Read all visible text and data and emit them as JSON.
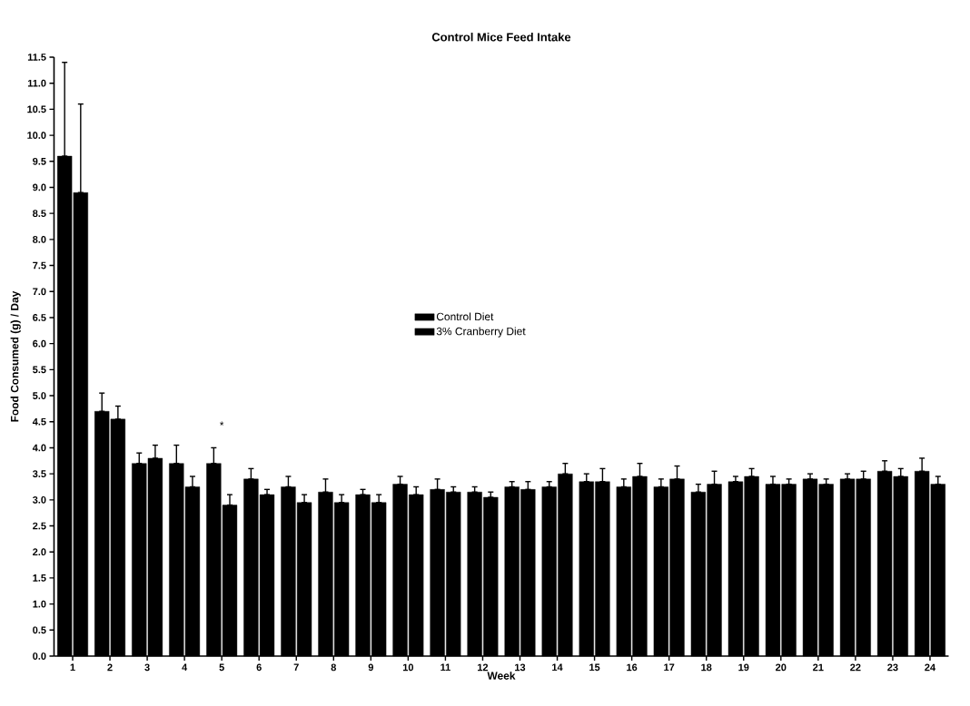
{
  "chart_data": {
    "type": "bar",
    "title": "Control Mice Feed Intake",
    "xlabel": "Week",
    "ylabel": "Food Consumed (g) / Day",
    "categories": [
      "1",
      "2",
      "3",
      "4",
      "5",
      "6",
      "7",
      "8",
      "9",
      "10",
      "11",
      "12",
      "13",
      "14",
      "15",
      "16",
      "17",
      "18",
      "19",
      "20",
      "21",
      "22",
      "23",
      "24"
    ],
    "series": [
      {
        "name": "Control Diet",
        "color": "#000000",
        "values": [
          9.6,
          4.7,
          3.7,
          3.7,
          3.7,
          3.4,
          3.25,
          3.15,
          3.1,
          3.3,
          3.2,
          3.15,
          3.25,
          3.25,
          3.35,
          3.25,
          3.25,
          3.15,
          3.35,
          3.3,
          3.4,
          3.4,
          3.55,
          3.55
        ],
        "errors": [
          [
            9.6,
            11.4
          ],
          [
            4.7,
            5.05
          ],
          [
            3.7,
            3.9
          ],
          [
            3.7,
            4.05
          ],
          [
            3.7,
            4.0
          ],
          [
            3.4,
            3.6
          ],
          [
            3.25,
            3.45
          ],
          [
            3.15,
            3.4
          ],
          [
            3.1,
            3.2
          ],
          [
            3.3,
            3.45
          ],
          [
            3.2,
            3.4
          ],
          [
            3.15,
            3.25
          ],
          [
            3.25,
            3.35
          ],
          [
            3.25,
            3.35
          ],
          [
            3.35,
            3.5
          ],
          [
            3.25,
            3.4
          ],
          [
            3.25,
            3.4
          ],
          [
            3.15,
            3.3
          ],
          [
            3.35,
            3.45
          ],
          [
            3.3,
            3.45
          ],
          [
            3.4,
            3.5
          ],
          [
            3.4,
            3.5
          ],
          [
            3.55,
            3.75
          ],
          [
            3.55,
            3.8
          ]
        ]
      },
      {
        "name": "3% Cranberry Diet",
        "color": "#000000",
        "values": [
          8.9,
          4.55,
          3.8,
          3.25,
          2.9,
          3.1,
          2.95,
          2.95,
          2.95,
          3.1,
          3.15,
          3.05,
          3.2,
          3.5,
          3.35,
          3.45,
          3.4,
          3.3,
          3.45,
          3.3,
          3.3,
          3.4,
          3.45,
          3.3
        ],
        "errors": [
          [
            8.9,
            10.6
          ],
          [
            4.55,
            4.8
          ],
          [
            3.8,
            4.05
          ],
          [
            3.25,
            3.45
          ],
          [
            2.9,
            3.1
          ],
          [
            3.1,
            3.2
          ],
          [
            2.95,
            3.1
          ],
          [
            2.95,
            3.1
          ],
          [
            2.95,
            3.1
          ],
          [
            3.1,
            3.25
          ],
          [
            3.15,
            3.25
          ],
          [
            3.05,
            3.15
          ],
          [
            3.2,
            3.35
          ],
          [
            3.5,
            3.7
          ],
          [
            3.35,
            3.6
          ],
          [
            3.45,
            3.7
          ],
          [
            3.4,
            3.65
          ],
          [
            3.3,
            3.55
          ],
          [
            3.45,
            3.6
          ],
          [
            3.3,
            3.4
          ],
          [
            3.3,
            3.4
          ],
          [
            3.4,
            3.55
          ],
          [
            3.45,
            3.6
          ],
          [
            3.3,
            3.45
          ]
        ]
      }
    ],
    "ylim": [
      0,
      11.5
    ],
    "yticks": [
      {
        "value": 0,
        "label": "0.0"
      },
      {
        "value": 0.5,
        "label": "0.5"
      },
      {
        "value": 1,
        "label": "1.0"
      },
      {
        "value": 1.5,
        "label": "1.5"
      },
      {
        "value": 2,
        "label": "2.0"
      },
      {
        "value": 2.5,
        "label": "2.5"
      },
      {
        "value": 3,
        "label": "3.0"
      },
      {
        "value": 3.5,
        "label": "3.5"
      },
      {
        "value": 4,
        "label": "4.0"
      },
      {
        "value": 4.5,
        "label": "4.5"
      },
      {
        "value": 5,
        "label": "5.0"
      },
      {
        "value": 5.5,
        "label": "5.5"
      },
      {
        "value": 6,
        "label": "6.0"
      },
      {
        "value": 6.5,
        "label": "6.5"
      },
      {
        "value": 7,
        "label": "7.0"
      },
      {
        "value": 7.5,
        "label": "7.5"
      },
      {
        "value": 8,
        "label": "8.0"
      },
      {
        "value": 8.5,
        "label": "8.5"
      },
      {
        "value": 9,
        "label": "9.0"
      },
      {
        "value": 9.5,
        "label": "9.5"
      },
      {
        "value": 10,
        "label": "10.0"
      },
      {
        "value": 10.5,
        "label": "10.5"
      },
      {
        "value": 11,
        "label": "11.0"
      },
      {
        "value": 11.5,
        "label": "11.5"
      }
    ],
    "annotations": [
      "*"
    ],
    "legend": "center",
    "grid": false
  }
}
